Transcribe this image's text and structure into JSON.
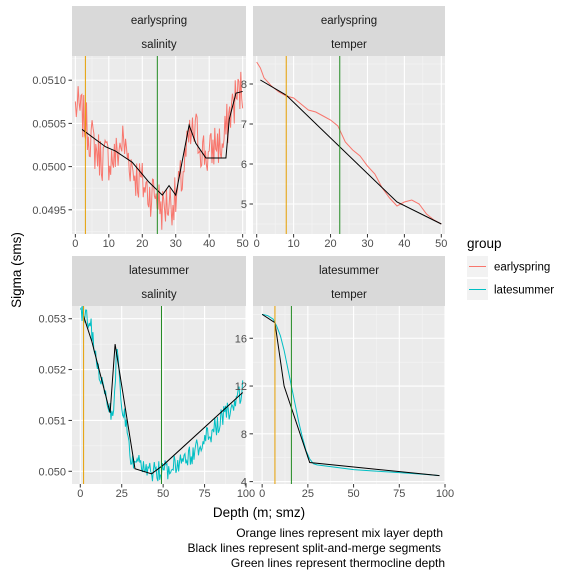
{
  "chart_data": {
    "type": "line",
    "xlabel": "Depth (m; smz)",
    "ylabel": "Sigma (sms)",
    "legend": {
      "title": "group",
      "placement": "right",
      "entries": [
        {
          "label": "earlyspring",
          "color": "#F8766D"
        },
        {
          "label": "latesummer",
          "color": "#00BFC4"
        }
      ]
    },
    "captions": [
      "Orange lines represent mix layer depth",
      "Black lines represent split-and-merge segments",
      "Green lines represent thermocline depth"
    ],
    "colors": {
      "mix_layer": "#E69F00",
      "segments": "#000000",
      "thermocline": "#228B22",
      "panel_bg": "#EBEBEB",
      "strip_bg": "#D9D9D9"
    },
    "panels": [
      {
        "id": "es_salinity",
        "strip": [
          "earlyspring",
          "salinity"
        ],
        "group": "earlyspring",
        "xlim": [
          -1,
          51
        ],
        "ylim": [
          0.04922,
          0.05128
        ],
        "xticks": [
          0,
          10,
          20,
          30,
          40,
          50
        ],
        "yticks": [
          0.0495,
          0.05,
          0.0505,
          0.051
        ],
        "ytick_labels": [
          "0.0495",
          "0.0500",
          "0.0505",
          "0.0510"
        ],
        "mix_layer_depth": 3,
        "thermocline_depth": 24.5,
        "noise": 0.00028,
        "series_x": [
          0,
          2,
          4,
          6,
          8,
          10,
          12,
          14,
          16,
          18,
          20,
          22,
          24,
          26,
          28,
          30,
          32,
          34,
          36,
          38,
          40,
          42,
          44,
          46,
          48,
          50
        ],
        "series_y": [
          0.0507,
          0.0506,
          0.0504,
          0.0502,
          0.0501,
          0.0501,
          0.0501,
          0.0503,
          0.0501,
          0.0499,
          0.0498,
          0.0497,
          0.0497,
          0.0495,
          0.0496,
          0.0496,
          0.0499,
          0.0503,
          0.0504,
          0.0502,
          0.0501,
          0.0503,
          0.0502,
          0.0506,
          0.0508,
          0.0509
        ],
        "segments_x": [
          2,
          9,
          12,
          17,
          22,
          26,
          28,
          30,
          34,
          36,
          39,
          41,
          45,
          46,
          48,
          50
        ],
        "segments_y": [
          0.05043,
          0.05023,
          0.05018,
          0.05005,
          0.04982,
          0.04967,
          0.04978,
          0.04967,
          0.05048,
          0.05027,
          0.0501,
          0.0501,
          0.0501,
          0.05055,
          0.05085,
          0.05087
        ]
      },
      {
        "id": "es_temper",
        "strip": [
          "earlyspring",
          "temper"
        ],
        "group": "earlyspring",
        "xlim": [
          -1,
          51
        ],
        "ylim": [
          4.25,
          8.7
        ],
        "xticks": [
          0,
          10,
          20,
          30,
          40,
          50
        ],
        "yticks": [
          5,
          6,
          7,
          8
        ],
        "ytick_labels": [
          "5",
          "6",
          "7",
          "8"
        ],
        "mix_layer_depth": 8,
        "thermocline_depth": 22.5,
        "noise": 0,
        "series_x": [
          0,
          1,
          2,
          4,
          6,
          8,
          10,
          12,
          14,
          16,
          18,
          20,
          22,
          24,
          26,
          28,
          30,
          32,
          34,
          36,
          38,
          40,
          42,
          44,
          46,
          48,
          50
        ],
        "series_y": [
          8.55,
          8.4,
          8.15,
          7.95,
          7.8,
          7.7,
          7.65,
          7.5,
          7.35,
          7.3,
          7.2,
          7.1,
          6.95,
          6.55,
          6.35,
          6.2,
          5.95,
          5.75,
          5.4,
          5.15,
          4.95,
          5.05,
          5.1,
          5.0,
          4.75,
          4.6,
          4.5
        ],
        "segments_x": [
          1,
          8,
          38,
          50
        ],
        "segments_y": [
          8.1,
          7.72,
          5.05,
          4.5
        ]
      },
      {
        "id": "ls_salinity",
        "strip": [
          "latesummer",
          "salinity"
        ],
        "group": "latesummer",
        "xlim": [
          -5,
          100
        ],
        "ylim": [
          0.04975,
          0.05325
        ],
        "xticks": [
          0,
          25,
          50,
          75,
          100
        ],
        "yticks": [
          0.05,
          0.051,
          0.052,
          0.053
        ],
        "ytick_labels": [
          "0.050",
          "0.051",
          "0.052",
          "0.053"
        ],
        "mix_layer_depth": 2,
        "thermocline_depth": 49,
        "noise": 0.00022,
        "series_x": [
          0,
          3,
          6,
          9,
          12,
          15,
          18,
          20,
          22,
          24,
          27,
          30,
          33,
          36,
          40,
          45,
          50,
          55,
          60,
          65,
          70,
          75,
          80,
          85,
          90,
          95,
          98
        ],
        "series_y": [
          0.0532,
          0.0531,
          0.0529,
          0.0524,
          0.0519,
          0.0515,
          0.0512,
          0.0511,
          0.0524,
          0.0516,
          0.051,
          0.0503,
          0.0501,
          0.0501,
          0.05,
          0.05,
          0.05,
          0.0501,
          0.0502,
          0.0503,
          0.0504,
          0.0506,
          0.0508,
          0.051,
          0.0512,
          0.0514,
          0.0516
        ],
        "segments_x": [
          2,
          7,
          18,
          21,
          33,
          43,
          50,
          98
        ],
        "segments_y": [
          0.05305,
          0.05255,
          0.05115,
          0.0525,
          0.05005,
          0.04995,
          0.05012,
          0.05155
        ]
      },
      {
        "id": "ls_temper",
        "strip": [
          "latesummer",
          "temper"
        ],
        "group": "latesummer",
        "xlim": [
          -5,
          100
        ],
        "ylim": [
          3.8,
          18.7
        ],
        "xticks": [
          0,
          25,
          50,
          75,
          100
        ],
        "yticks": [
          4,
          8,
          12,
          16
        ],
        "ytick_labels": [
          "4",
          "8",
          "12",
          "16"
        ],
        "mix_layer_depth": 7,
        "thermocline_depth": 16,
        "noise": 0,
        "series_x": [
          0,
          3,
          6,
          8,
          10,
          12,
          14,
          16,
          18,
          20,
          22,
          24,
          26,
          28,
          30,
          40,
          50,
          60,
          70,
          80,
          90,
          97
        ],
        "series_y": [
          18.0,
          17.9,
          17.6,
          17.0,
          16.2,
          15.0,
          13.5,
          12.0,
          10.5,
          9.0,
          7.7,
          6.6,
          5.9,
          5.5,
          5.4,
          5.2,
          5.0,
          4.9,
          4.8,
          4.7,
          4.6,
          4.5
        ],
        "segments_x": [
          0,
          7,
          12,
          26,
          97
        ],
        "segments_y": [
          18.0,
          17.3,
          12.0,
          5.6,
          4.5
        ]
      }
    ]
  }
}
